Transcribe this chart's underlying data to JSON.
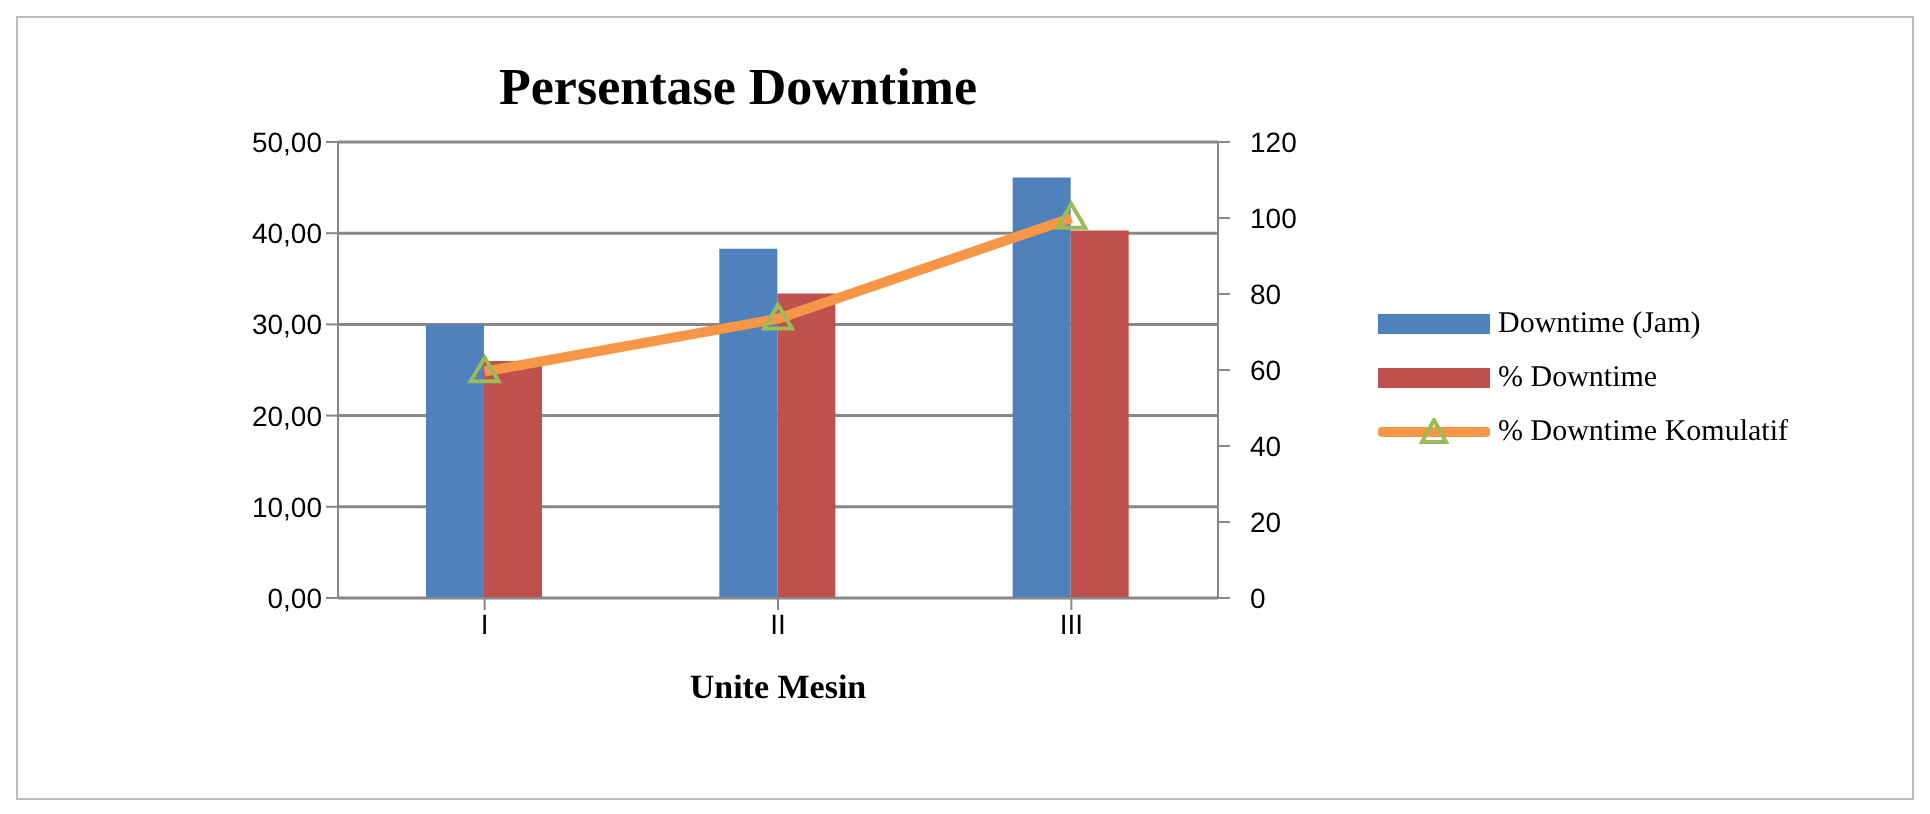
{
  "chart_data": {
    "type": "bar",
    "title": "Persentase Downtime",
    "xlabel": "Unite Mesin",
    "categories": [
      "I",
      "II",
      "III"
    ],
    "series": [
      {
        "name": "Downtime (Jam)",
        "color": "#4f81bd",
        "values": [
          30,
          38.3,
          46.1
        ]
      },
      {
        "name": "% Downtime",
        "color": "#c0504d",
        "values": [
          26,
          33.4,
          40.3
        ]
      },
      {
        "name": "% Downtime Komulatif",
        "type": "line",
        "axis": "y2",
        "color": "#f79646",
        "marker": "triangle",
        "values": [
          59.6,
          73.5,
          100
        ]
      }
    ],
    "ylim": [
      0,
      50
    ],
    "yticks": [
      {
        "value": 0,
        "label": "0,00"
      },
      {
        "value": 10,
        "label": "10,00"
      },
      {
        "value": 20,
        "label": "20,00"
      },
      {
        "value": 30,
        "label": "30,00"
      },
      {
        "value": 40,
        "label": "40,00"
      },
      {
        "value": 50,
        "label": "50,00"
      }
    ],
    "y2lim": [
      0,
      120
    ],
    "y2ticks": [
      0,
      20,
      40,
      60,
      80,
      100,
      120
    ],
    "grid": "y",
    "legend": "right"
  }
}
